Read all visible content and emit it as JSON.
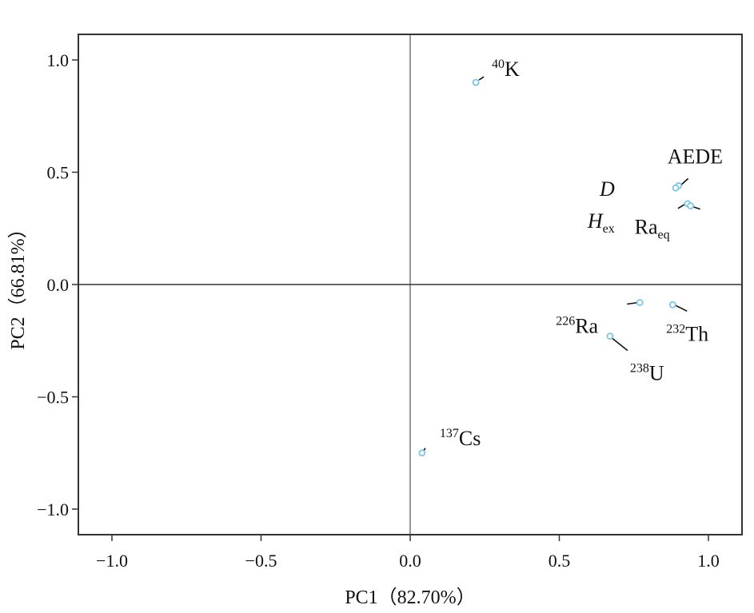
{
  "chart_data": {
    "type": "scatter",
    "title": "",
    "xlabel": "PC1（82.70%）",
    "ylabel": "PC2（66.81%）",
    "xlim": [
      -1.1,
      1.1
    ],
    "ylim": [
      -1.1,
      1.1
    ],
    "x_ticks": [
      -1.0,
      -0.5,
      0.0,
      0.5,
      1.0
    ],
    "x_tick_labels": [
      "−1.0",
      "−0.5",
      "0.0",
      "0.5",
      "1.0"
    ],
    "y_ticks": [
      1.0,
      0.5,
      0.0,
      -0.5,
      -1.0
    ],
    "y_tick_labels": [
      "1.0",
      "0.5",
      "0.0",
      "−0.5",
      "−1.0"
    ],
    "grid": false,
    "reference_lines": {
      "x": 0,
      "y": 0
    },
    "colors": {
      "marker": "#7fc4e6",
      "line": "#111111"
    },
    "points": [
      {
        "sup": "40",
        "name": "K",
        "sub": "",
        "italic": false,
        "x": 0.22,
        "y": 0.9
      },
      {
        "sup": "",
        "name": "AEDE",
        "sub": "",
        "italic": false,
        "x": 0.9,
        "y": 0.44
      },
      {
        "sup": "",
        "name": "D",
        "sub": "",
        "italic": true,
        "x": 0.89,
        "y": 0.43
      },
      {
        "sup": "",
        "name": "H",
        "sub": "ex",
        "italic": true,
        "x": 0.93,
        "y": 0.36
      },
      {
        "sup": "",
        "name": "Ra",
        "sub": "eq",
        "italic": false,
        "x": 0.94,
        "y": 0.35
      },
      {
        "sup": "226",
        "name": "Ra",
        "sub": "",
        "italic": false,
        "x": 0.77,
        "y": -0.08
      },
      {
        "sup": "232",
        "name": "Th",
        "sub": "",
        "italic": false,
        "x": 0.88,
        "y": -0.09
      },
      {
        "sup": "238",
        "name": "U",
        "sub": "",
        "italic": false,
        "x": 0.67,
        "y": -0.23
      },
      {
        "sup": "137",
        "name": "Cs",
        "sub": "",
        "italic": false,
        "x": 0.04,
        "y": -0.75
      }
    ]
  }
}
